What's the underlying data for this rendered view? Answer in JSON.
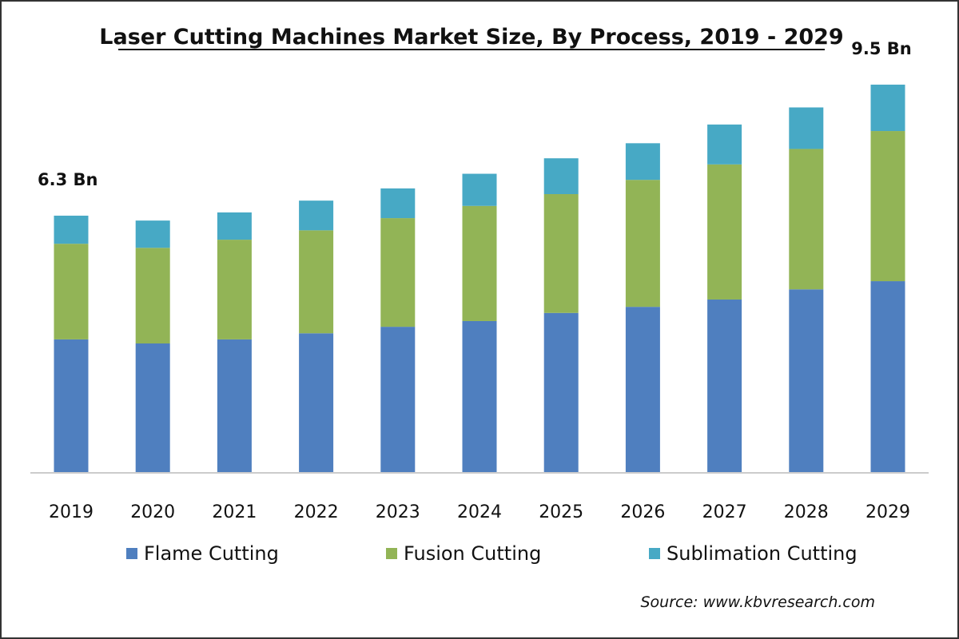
{
  "chart_data": {
    "type": "bar",
    "stacked": true,
    "title": "Laser Cutting Machines Market Size, By Process, 2019 - 2029",
    "xlabel": "",
    "ylabel": "",
    "unit": "Bn",
    "ylim": [
      0,
      10
    ],
    "grid": false,
    "legend_position": "bottom",
    "categories": [
      "2019",
      "2020",
      "2021",
      "2022",
      "2023",
      "2024",
      "2025",
      "2026",
      "2027",
      "2028",
      "2029"
    ],
    "series": [
      {
        "name": "Flame Cutting",
        "color": "#4f7fbf",
        "values": [
          3.26,
          3.16,
          3.26,
          3.41,
          3.57,
          3.71,
          3.91,
          4.06,
          4.24,
          4.49,
          4.69
        ]
      },
      {
        "name": "Fusion Cutting",
        "color": "#92b456",
        "values": [
          2.35,
          2.35,
          2.45,
          2.53,
          2.67,
          2.83,
          2.92,
          3.12,
          3.32,
          3.45,
          3.69
        ]
      },
      {
        "name": "Sublimation Cutting",
        "color": "#47a9c5",
        "values": [
          0.69,
          0.67,
          0.67,
          0.73,
          0.73,
          0.79,
          0.88,
          0.9,
          0.98,
          1.02,
          1.14
        ]
      }
    ],
    "annotations": [
      {
        "category": "2019",
        "text": "6.3 Bn"
      },
      {
        "category": "2029",
        "text": "9.5 Bn"
      }
    ],
    "source": "Source:  www.kbvresearch.com"
  }
}
